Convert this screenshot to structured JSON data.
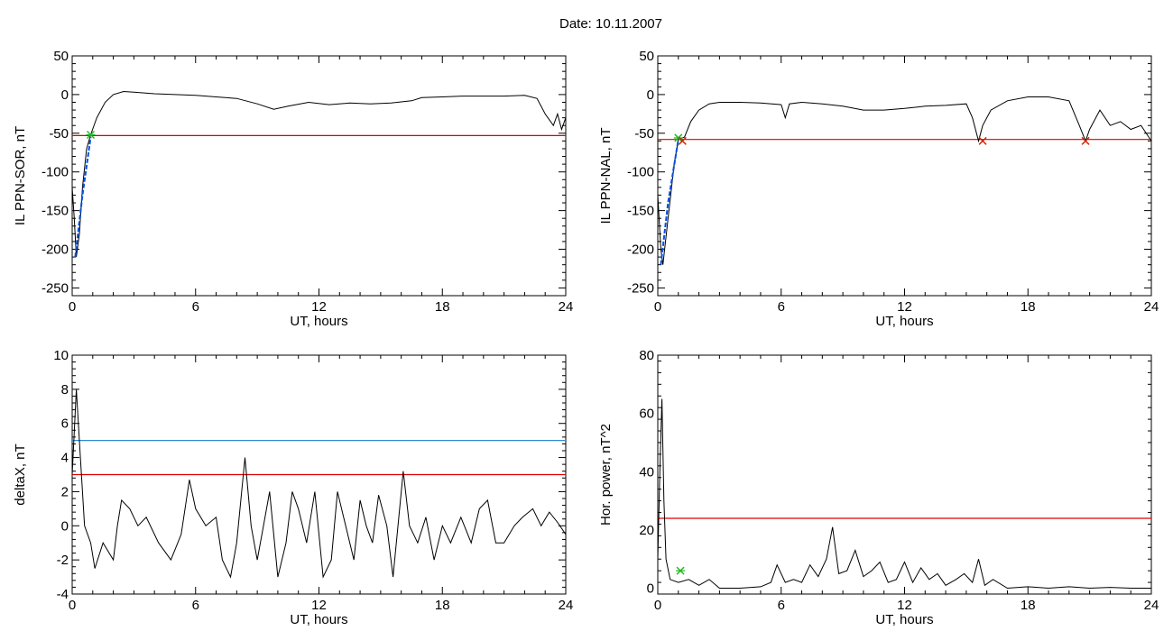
{
  "title": "Date:  10.11.2007",
  "colors": {
    "series": "#000000",
    "threshold": "#e00000",
    "fit": "#0050e0",
    "marker": "#22bb22",
    "cross": "#d02000"
  },
  "chart_data": [
    {
      "type": "line",
      "ylabel": "IL PPN-SOR, nT",
      "xlabel": "UT, hours",
      "xlim": [
        0,
        24
      ],
      "xticks": [
        0,
        6,
        12,
        18,
        24
      ],
      "ylim": [
        -260,
        50
      ],
      "yticks": [
        50,
        0,
        -50,
        -100,
        -150,
        -200,
        -250
      ],
      "series": [
        {
          "values": [
            [
              0,
              -120
            ],
            [
              0.1,
              -160
            ],
            [
              0.2,
              -210
            ],
            [
              0.35,
              -180
            ],
            [
              0.5,
              -120
            ],
            [
              0.7,
              -70
            ],
            [
              0.9,
              -52
            ],
            [
              1.2,
              -30
            ],
            [
              1.6,
              -10
            ],
            [
              2.0,
              0
            ],
            [
              2.5,
              4
            ],
            [
              3,
              3
            ],
            [
              4,
              1
            ],
            [
              5,
              0
            ],
            [
              6,
              -1
            ],
            [
              7,
              -3
            ],
            [
              8,
              -5
            ],
            [
              9,
              -12
            ],
            [
              9.8,
              -19
            ],
            [
              10.5,
              -15
            ],
            [
              11.5,
              -10
            ],
            [
              12.5,
              -13
            ],
            [
              13.5,
              -11
            ],
            [
              14.5,
              -12
            ],
            [
              15.5,
              -11
            ],
            [
              16.5,
              -8
            ],
            [
              17,
              -4
            ],
            [
              18,
              -3
            ],
            [
              19,
              -2
            ],
            [
              20,
              -2
            ],
            [
              21,
              -2
            ],
            [
              22,
              -1
            ],
            [
              22.6,
              -5
            ],
            [
              23,
              -25
            ],
            [
              23.4,
              -40
            ],
            [
              23.6,
              -25
            ],
            [
              23.8,
              -45
            ],
            [
              24,
              -30
            ]
          ]
        }
      ],
      "threshold": {
        "name": "",
        "value": -53,
        "color": "#e00000"
      },
      "fit": {
        "values": [
          [
            0.15,
            -210
          ],
          [
            0.5,
            -130
          ],
          [
            0.9,
            -55
          ]
        ]
      },
      "markers": [
        {
          "x": 0.9,
          "y": -52,
          "kind": "green-star"
        }
      ]
    },
    {
      "type": "line",
      "ylabel": "IL PPN-NAL, nT",
      "xlabel": "UT, hours",
      "xlim": [
        0,
        24
      ],
      "xticks": [
        0,
        6,
        12,
        18,
        24
      ],
      "ylim": [
        -260,
        50
      ],
      "yticks": [
        50,
        0,
        -50,
        -100,
        -150,
        -200,
        -250
      ],
      "series": [
        {
          "values": [
            [
              0,
              -130
            ],
            [
              0.15,
              -200
            ],
            [
              0.25,
              -220
            ],
            [
              0.5,
              -160
            ],
            [
              0.8,
              -90
            ],
            [
              1.0,
              -58
            ],
            [
              1.3,
              -55
            ],
            [
              1.6,
              -35
            ],
            [
              2.0,
              -20
            ],
            [
              2.5,
              -12
            ],
            [
              3,
              -10
            ],
            [
              4,
              -10
            ],
            [
              5,
              -11
            ],
            [
              6,
              -13
            ],
            [
              6.2,
              -30
            ],
            [
              6.4,
              -12
            ],
            [
              7,
              -10
            ],
            [
              8,
              -12
            ],
            [
              9,
              -15
            ],
            [
              10,
              -20
            ],
            [
              11,
              -20
            ],
            [
              12,
              -18
            ],
            [
              13,
              -15
            ],
            [
              14,
              -14
            ],
            [
              15,
              -12
            ],
            [
              15.3,
              -30
            ],
            [
              15.6,
              -60
            ],
            [
              15.8,
              -40
            ],
            [
              16.2,
              -20
            ],
            [
              17,
              -8
            ],
            [
              18,
              -3
            ],
            [
              19,
              -3
            ],
            [
              20,
              -8
            ],
            [
              20.5,
              -40
            ],
            [
              20.8,
              -60
            ],
            [
              21,
              -45
            ],
            [
              21.5,
              -20
            ],
            [
              22,
              -40
            ],
            [
              22.5,
              -35
            ],
            [
              23,
              -45
            ],
            [
              23.5,
              -40
            ],
            [
              24,
              -60
            ]
          ]
        }
      ],
      "threshold": {
        "name": "",
        "value": -58,
        "color": "#e00000"
      },
      "fit": {
        "values": [
          [
            0.15,
            -220
          ],
          [
            0.5,
            -140
          ],
          [
            1.0,
            -58
          ]
        ]
      },
      "markers": [
        {
          "x": 1.0,
          "y": -56,
          "kind": "green-star"
        },
        {
          "x": 1.2,
          "y": -60,
          "kind": "red-cross"
        },
        {
          "x": 15.8,
          "y": -60,
          "kind": "red-cross"
        },
        {
          "x": 20.8,
          "y": -60,
          "kind": "red-cross"
        }
      ]
    },
    {
      "type": "line",
      "ylabel": "deltaX, nT",
      "xlabel": "UT, hours",
      "xlim": [
        0,
        24
      ],
      "xticks": [
        0,
        6,
        12,
        18,
        24
      ],
      "ylim": [
        -4,
        10
      ],
      "yticks": [
        10,
        8,
        6,
        4,
        2,
        0,
        -2,
        -4
      ],
      "series": [
        {
          "values": [
            [
              0,
              3
            ],
            [
              0.2,
              8
            ],
            [
              0.4,
              4
            ],
            [
              0.6,
              0
            ],
            [
              0.9,
              -1
            ],
            [
              1.1,
              -2.5
            ],
            [
              1.5,
              -1
            ],
            [
              2.0,
              -2
            ],
            [
              2.2,
              0
            ],
            [
              2.4,
              1.5
            ],
            [
              2.8,
              1
            ],
            [
              3.2,
              0
            ],
            [
              3.6,
              0.5
            ],
            [
              4.2,
              -1
            ],
            [
              4.8,
              -2
            ],
            [
              5.3,
              -0.5
            ],
            [
              5.7,
              2.7
            ],
            [
              6.0,
              1
            ],
            [
              6.5,
              0
            ],
            [
              7.0,
              0.5
            ],
            [
              7.3,
              -2
            ],
            [
              7.7,
              -3
            ],
            [
              8.0,
              -1
            ],
            [
              8.4,
              4
            ],
            [
              8.7,
              0
            ],
            [
              9.0,
              -2
            ],
            [
              9.3,
              0
            ],
            [
              9.6,
              2
            ],
            [
              10.0,
              -3
            ],
            [
              10.4,
              -1
            ],
            [
              10.7,
              2
            ],
            [
              11.0,
              1
            ],
            [
              11.4,
              -1
            ],
            [
              11.8,
              2
            ],
            [
              12.2,
              -3
            ],
            [
              12.6,
              -2
            ],
            [
              12.9,
              2
            ],
            [
              13.3,
              0
            ],
            [
              13.7,
              -2
            ],
            [
              14.0,
              1.5
            ],
            [
              14.3,
              0
            ],
            [
              14.6,
              -1
            ],
            [
              14.9,
              1.8
            ],
            [
              15.3,
              0
            ],
            [
              15.6,
              -3
            ],
            [
              16.1,
              3.2
            ],
            [
              16.4,
              0
            ],
            [
              16.8,
              -1
            ],
            [
              17.2,
              0.5
            ],
            [
              17.6,
              -2
            ],
            [
              18.0,
              0
            ],
            [
              18.4,
              -1
            ],
            [
              18.9,
              0.5
            ],
            [
              19.4,
              -1
            ],
            [
              19.8,
              1
            ],
            [
              20.2,
              1.5
            ],
            [
              20.6,
              -1
            ],
            [
              21.0,
              -1
            ],
            [
              21.5,
              0
            ],
            [
              21.9,
              0.5
            ],
            [
              22.4,
              1
            ],
            [
              22.8,
              0
            ],
            [
              23.2,
              0.8
            ],
            [
              23.6,
              0.2
            ],
            [
              24,
              -0.5
            ]
          ]
        }
      ],
      "threshold": {
        "name": "",
        "value": 3,
        "color": "#e00000"
      },
      "threshold2": {
        "name": "",
        "value": 5,
        "color": "#3388cc"
      }
    },
    {
      "type": "line",
      "ylabel": "Hor. power, nT^2",
      "xlabel": "UT, hours",
      "xlim": [
        0,
        24
      ],
      "xticks": [
        0,
        6,
        12,
        18,
        24
      ],
      "ylim": [
        -2,
        80
      ],
      "yticks": [
        80,
        60,
        40,
        20,
        0
      ],
      "series": [
        {
          "values": [
            [
              0,
              10
            ],
            [
              0.1,
              40
            ],
            [
              0.2,
              65
            ],
            [
              0.3,
              30
            ],
            [
              0.4,
              10
            ],
            [
              0.6,
              3
            ],
            [
              1.0,
              2
            ],
            [
              1.5,
              3
            ],
            [
              2.0,
              1
            ],
            [
              2.5,
              3
            ],
            [
              3,
              0
            ],
            [
              4,
              0
            ],
            [
              5,
              0.5
            ],
            [
              5.5,
              2
            ],
            [
              5.8,
              8
            ],
            [
              6.2,
              2
            ],
            [
              6.6,
              3
            ],
            [
              7.0,
              2
            ],
            [
              7.4,
              8
            ],
            [
              7.8,
              4
            ],
            [
              8.2,
              10
            ],
            [
              8.5,
              21
            ],
            [
              8.8,
              5
            ],
            [
              9.2,
              6
            ],
            [
              9.6,
              13
            ],
            [
              10,
              4
            ],
            [
              10.4,
              6
            ],
            [
              10.8,
              9
            ],
            [
              11.2,
              2
            ],
            [
              11.6,
              3
            ],
            [
              12.0,
              9
            ],
            [
              12.4,
              2
            ],
            [
              12.8,
              7
            ],
            [
              13.2,
              3
            ],
            [
              13.6,
              5
            ],
            [
              14.0,
              1
            ],
            [
              14.5,
              3
            ],
            [
              14.9,
              5
            ],
            [
              15.3,
              2
            ],
            [
              15.6,
              10
            ],
            [
              15.9,
              1
            ],
            [
              16.3,
              3
            ],
            [
              17,
              0
            ],
            [
              18,
              0.5
            ],
            [
              19,
              0
            ],
            [
              20,
              0.5
            ],
            [
              21,
              0
            ],
            [
              22,
              0.3
            ],
            [
              23,
              0
            ],
            [
              24,
              0
            ]
          ]
        }
      ],
      "threshold": {
        "name": "",
        "value": 24,
        "color": "#e00000"
      },
      "markers": [
        {
          "x": 1.1,
          "y": 6,
          "kind": "green-star"
        }
      ]
    }
  ]
}
